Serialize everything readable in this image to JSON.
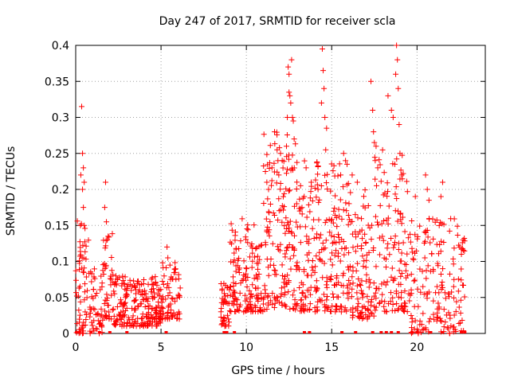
{
  "chart_data": {
    "type": "scatter",
    "title": "Day 247 of 2017, SRMTID for receiver scla",
    "xlabel": "GPS time / hours",
    "ylabel": "SRMTID / TECUs",
    "xlim": [
      0,
      24
    ],
    "ylim": [
      0,
      0.4
    ],
    "x_ticks": [
      0,
      5,
      10,
      15,
      20
    ],
    "y_ticks": [
      0,
      0.05,
      0.1,
      0.15,
      0.2,
      0.25,
      0.3,
      0.35,
      0.4
    ],
    "y_tick_labels": [
      "0",
      "0.05",
      "0.1",
      "0.15",
      "0.2",
      "0.25",
      "0.3",
      "0.35",
      "0.4"
    ],
    "grid": true,
    "marker": "+",
    "color": "#ff0000",
    "segments": [
      {
        "x_start": 0.0,
        "x_end": 0.8,
        "y_min": 0.0,
        "y_max": 0.16,
        "n": 60
      },
      {
        "x_start": 0.8,
        "x_end": 1.6,
        "y_min": 0.0,
        "y_max": 0.09,
        "n": 50
      },
      {
        "x_start": 1.6,
        "x_end": 2.2,
        "y_min": 0.02,
        "y_max": 0.14,
        "n": 40
      },
      {
        "x_start": 2.2,
        "x_end": 5.0,
        "y_min": 0.01,
        "y_max": 0.08,
        "n": 220
      },
      {
        "x_start": 5.0,
        "x_end": 6.2,
        "y_min": 0.02,
        "y_max": 0.1,
        "n": 70
      },
      {
        "x_start": 8.5,
        "x_end": 9.0,
        "y_min": 0.01,
        "y_max": 0.07,
        "n": 40
      },
      {
        "x_start": 9.0,
        "x_end": 11.0,
        "y_min": 0.03,
        "y_max": 0.16,
        "n": 150
      },
      {
        "x_start": 11.0,
        "x_end": 13.0,
        "y_min": 0.03,
        "y_max": 0.28,
        "n": 170
      },
      {
        "x_start": 13.0,
        "x_end": 16.0,
        "y_min": 0.03,
        "y_max": 0.24,
        "n": 230
      },
      {
        "x_start": 16.0,
        "x_end": 17.5,
        "y_min": 0.02,
        "y_max": 0.2,
        "n": 110
      },
      {
        "x_start": 17.5,
        "x_end": 19.5,
        "y_min": 0.03,
        "y_max": 0.26,
        "n": 130
      },
      {
        "x_start": 19.5,
        "x_end": 22.8,
        "y_min": 0.0,
        "y_max": 0.16,
        "n": 180
      }
    ],
    "peaks": [
      [
        0.35,
        0.315
      ],
      [
        0.4,
        0.25
      ],
      [
        0.45,
        0.23
      ],
      [
        0.3,
        0.22
      ],
      [
        0.5,
        0.21
      ],
      [
        0.4,
        0.2
      ],
      [
        0.45,
        0.175
      ],
      [
        0.5,
        0.15
      ],
      [
        1.75,
        0.21
      ],
      [
        1.7,
        0.175
      ],
      [
        1.8,
        0.155
      ],
      [
        1.9,
        0.135
      ],
      [
        1.85,
        0.13
      ],
      [
        5.35,
        0.12
      ],
      [
        5.4,
        0.105
      ],
      [
        11.2,
        0.21
      ],
      [
        11.3,
        0.2
      ],
      [
        11.5,
        0.23
      ],
      [
        11.9,
        0.22
      ],
      [
        12.0,
        0.25
      ],
      [
        12.1,
        0.24
      ],
      [
        12.45,
        0.37
      ],
      [
        12.5,
        0.335
      ],
      [
        12.55,
        0.33
      ],
      [
        12.6,
        0.32
      ],
      [
        12.65,
        0.38
      ],
      [
        12.4,
        0.3
      ],
      [
        12.7,
        0.3
      ],
      [
        12.8,
        0.27
      ],
      [
        12.75,
        0.295
      ],
      [
        12.5,
        0.36
      ],
      [
        12.35,
        0.26
      ],
      [
        11.65,
        0.28
      ],
      [
        11.8,
        0.255
      ],
      [
        13.5,
        0.23
      ],
      [
        13.8,
        0.21
      ],
      [
        14.2,
        0.2
      ],
      [
        14.45,
        0.395
      ],
      [
        14.5,
        0.365
      ],
      [
        14.55,
        0.34
      ],
      [
        14.6,
        0.3
      ],
      [
        14.7,
        0.285
      ],
      [
        14.65,
        0.255
      ],
      [
        14.4,
        0.32
      ],
      [
        15.7,
        0.25
      ],
      [
        15.9,
        0.235
      ],
      [
        16.2,
        0.22
      ],
      [
        16.5,
        0.21
      ],
      [
        17.3,
        0.35
      ],
      [
        17.4,
        0.31
      ],
      [
        17.45,
        0.28
      ],
      [
        17.5,
        0.265
      ],
      [
        17.6,
        0.26
      ],
      [
        17.55,
        0.24
      ],
      [
        17.7,
        0.23
      ],
      [
        18.3,
        0.33
      ],
      [
        18.5,
        0.31
      ],
      [
        18.6,
        0.3
      ],
      [
        18.8,
        0.4
      ],
      [
        18.85,
        0.38
      ],
      [
        18.75,
        0.36
      ],
      [
        18.9,
        0.34
      ],
      [
        18.95,
        0.29
      ],
      [
        19.0,
        0.25
      ],
      [
        18.7,
        0.235
      ],
      [
        19.1,
        0.22
      ],
      [
        19.9,
        0.19
      ],
      [
        20.5,
        0.22
      ],
      [
        20.6,
        0.2
      ],
      [
        20.7,
        0.185
      ],
      [
        21.5,
        0.21
      ],
      [
        21.4,
        0.19
      ],
      [
        22.5,
        0.12
      ],
      [
        22.6,
        0.11
      ]
    ],
    "zero_markers": [
      0.05,
      0.2,
      0.9,
      1.4,
      2.0,
      3.0,
      5.3,
      8.7,
      8.85,
      9.3,
      13.4,
      13.7,
      15.6,
      16.4,
      17.4,
      17.9,
      18.2,
      18.5,
      18.9,
      19.7,
      20.0,
      20.8,
      21.5,
      22.6,
      22.8
    ]
  }
}
